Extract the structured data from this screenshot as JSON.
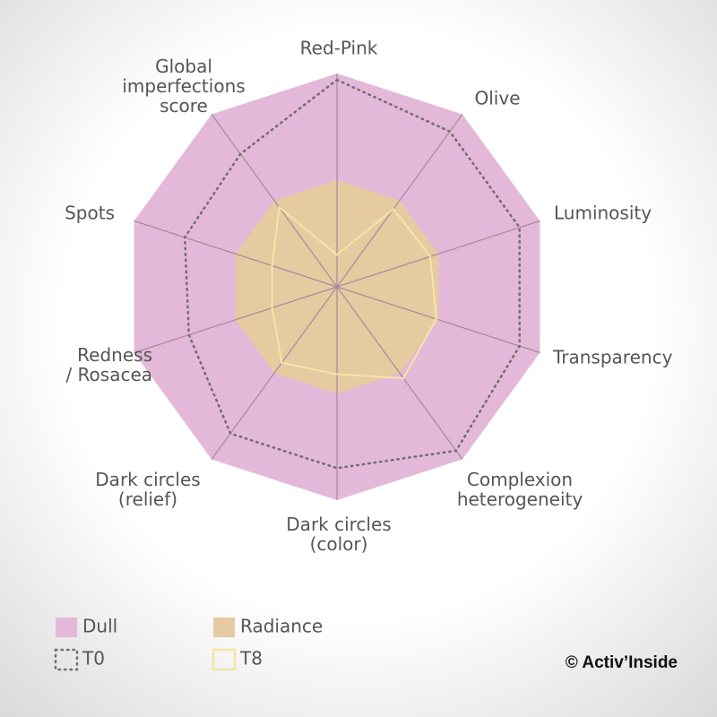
{
  "chart_data": {
    "type": "radar",
    "categories": [
      "Red-Pink",
      "Olive",
      "Luminosity",
      "Transparency",
      "Complexion\nheterogeneity",
      "Dark circles\n(color)",
      "Dark circles\n(relief)",
      "Redness\n/ Rosacea",
      "Spots",
      "Global\nimperfections\nscore"
    ],
    "rlim": [
      0,
      100
    ],
    "series": [
      {
        "name": "Dull",
        "color": "#e4b8d8",
        "style": "fill",
        "values": [
          100,
          100,
          100,
          100,
          100,
          100,
          100,
          100,
          100,
          100
        ]
      },
      {
        "name": "Radiance",
        "color": "#e6caa0",
        "style": "fill",
        "values": [
          50,
          50,
          50,
          50,
          50,
          50,
          50,
          50,
          50,
          50
        ]
      },
      {
        "name": "T0",
        "color": "#6e6e6e",
        "style": "dotted",
        "values": [
          97,
          90,
          90,
          90,
          95,
          85,
          85,
          73,
          75,
          77
        ]
      },
      {
        "name": "T8",
        "color": "#f3e6a6",
        "style": "line",
        "values": [
          15,
          45,
          46,
          49,
          53,
          41,
          44,
          32,
          32,
          46
        ]
      }
    ],
    "credit": "© Activ’Inside"
  }
}
